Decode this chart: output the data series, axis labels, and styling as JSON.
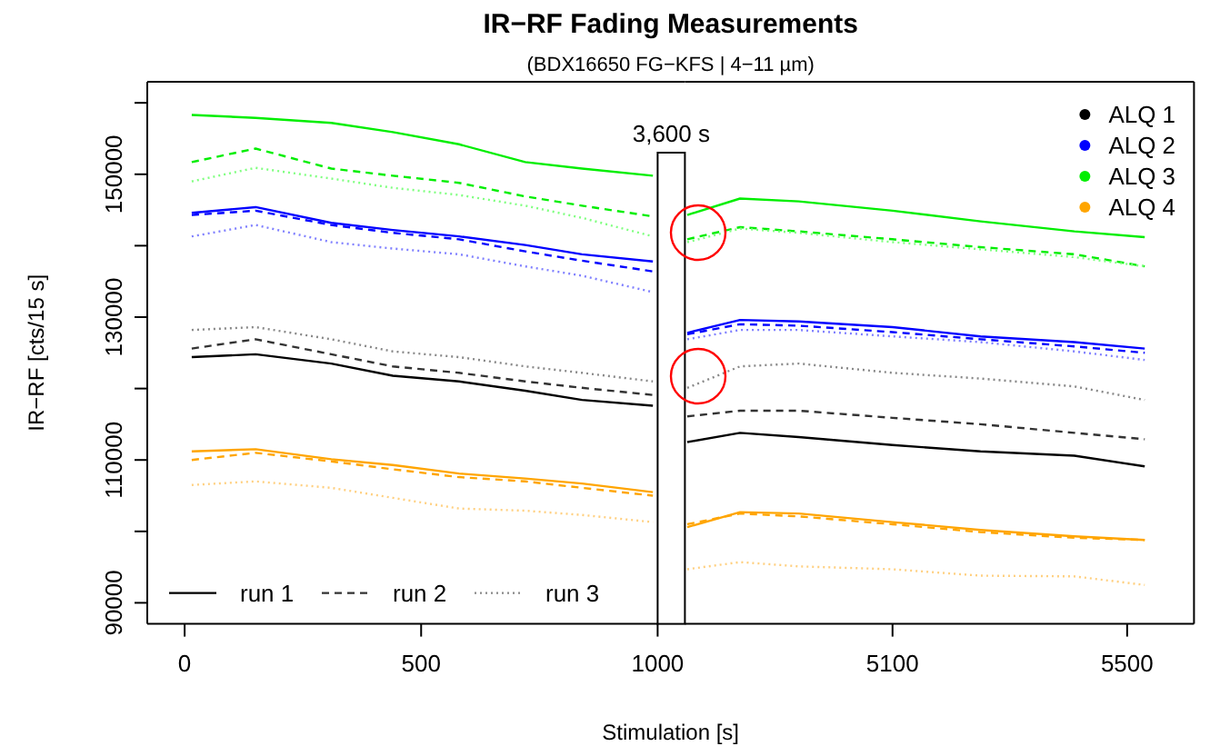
{
  "chart_data": [
    {
      "type": "line",
      "title": "IR−RF Fading Measurements",
      "subtitle": "(BDX16650 FG−KFS | 4−11 µm)",
      "xlabel": "Stimulation [s]",
      "ylabel": "IR−RF [cts/15 s]",
      "annotations": [
        "3,600 s"
      ],
      "x": [
        15,
        150,
        310,
        440,
        580,
        720,
        840,
        990
      ],
      "xlim": [
        -79,
        1000
      ],
      "xticks": [
        0,
        500,
        1000
      ],
      "ylim": [
        87050,
        162950
      ],
      "yticks": [
        {
          "value": 90000,
          "label": "90000"
        },
        {
          "value": 100000,
          "label": null
        },
        {
          "value": 110000,
          "label": "110000"
        },
        {
          "value": 120000,
          "label": null
        },
        {
          "value": 130000,
          "label": "130000"
        },
        {
          "value": 140000,
          "label": null
        },
        {
          "value": 150000,
          "label": "150000"
        },
        {
          "value": 160000,
          "label": null
        }
      ],
      "legend": "bottom left",
      "grid": false,
      "series": [
        {
          "name": "run 1",
          "color": "#000000",
          "line_style": "solid",
          "values": [
            124400,
            124800,
            123500,
            121800,
            121000,
            119700,
            118400,
            117600
          ]
        },
        {
          "name": "run 2",
          "color": "#333333",
          "line_style": "dashed",
          "values": [
            125600,
            126900,
            124800,
            123100,
            122200,
            121000,
            120100,
            119100
          ]
        },
        {
          "name": "run 3",
          "color": "#888888",
          "line_style": "dotted",
          "values": [
            128200,
            128600,
            126900,
            125200,
            124400,
            123100,
            122200,
            121000
          ]
        },
        {
          "color": "#0000ff",
          "line_style": "solid",
          "values": [
            144600,
            145400,
            143200,
            142200,
            141300,
            140100,
            138800,
            137800
          ]
        },
        {
          "color": "#0000ff",
          "line_style": "dashed",
          "values": [
            144300,
            144900,
            142900,
            141800,
            140900,
            139200,
            137900,
            136400
          ]
        },
        {
          "color": "#8080ff",
          "line_style": "dotted",
          "values": [
            141300,
            142900,
            140500,
            139600,
            138800,
            137100,
            135800,
            133500
          ]
        },
        {
          "color": "#00ee00",
          "line_style": "solid",
          "values": [
            158300,
            157900,
            157200,
            155900,
            154200,
            151700,
            150800,
            149800
          ]
        },
        {
          "color": "#00ee00",
          "line_style": "dashed",
          "values": [
            151700,
            153600,
            150800,
            149800,
            148800,
            146900,
            145600,
            144100
          ]
        },
        {
          "color": "#80ff80",
          "line_style": "dotted",
          "values": [
            149000,
            150900,
            149400,
            148100,
            147100,
            145600,
            143900,
            141300
          ]
        },
        {
          "color": "#ffa500",
          "line_style": "solid",
          "values": [
            111200,
            111500,
            110100,
            109300,
            108100,
            107400,
            106700,
            105500
          ]
        },
        {
          "color": "#ffa500",
          "line_style": "dashed",
          "values": [
            110000,
            111000,
            109800,
            108700,
            107600,
            107000,
            106100,
            105000
          ]
        },
        {
          "color": "#ffd080",
          "line_style": "dotted",
          "values": [
            106500,
            107000,
            106100,
            104700,
            103200,
            102900,
            102300,
            101300
          ]
        }
      ]
    },
    {
      "type": "line",
      "x": [
        4750,
        4840,
        4940,
        5100,
        5250,
        5410,
        5530
      ],
      "xlim": [
        4746,
        5614
      ],
      "xticks": [
        5100,
        5500
      ],
      "ylim": [
        87050,
        162950
      ],
      "tick_labels": "x",
      "legend": "top right",
      "grid": false,
      "series": [
        {
          "name": "ALQ 1",
          "color": "#000000",
          "line_style": "solid",
          "values": [
            112500,
            113800,
            113200,
            112100,
            111200,
            110600,
            109100
          ]
        },
        {
          "color": "#333333",
          "line_style": "dashed",
          "values": [
            116100,
            116900,
            116900,
            115900,
            115000,
            113800,
            112900
          ]
        },
        {
          "color": "#888888",
          "line_style": "dotted",
          "values": [
            120100,
            123100,
            123500,
            122200,
            121400,
            120300,
            118400
          ]
        },
        {
          "name": "ALQ 2",
          "color": "#0000ff",
          "line_style": "solid",
          "values": [
            127800,
            129600,
            129400,
            128600,
            127300,
            126500,
            125600
          ]
        },
        {
          "color": "#0000ff",
          "line_style": "dashed",
          "values": [
            127600,
            129000,
            128800,
            127900,
            126900,
            125900,
            125000
          ]
        },
        {
          "color": "#8080ff",
          "line_style": "dotted",
          "values": [
            126900,
            128200,
            128200,
            127300,
            126500,
            125200,
            124000
          ]
        },
        {
          "name": "ALQ 3",
          "color": "#00ee00",
          "line_style": "solid",
          "values": [
            144300,
            146600,
            146200,
            144900,
            143400,
            142000,
            141200
          ]
        },
        {
          "color": "#00ee00",
          "line_style": "dashed",
          "values": [
            140900,
            142600,
            142000,
            140900,
            139800,
            138800,
            137100
          ]
        },
        {
          "color": "#80ff80",
          "line_style": "dotted",
          "values": [
            140500,
            142400,
            141800,
            140500,
            139500,
            138400,
            137100
          ]
        },
        {
          "name": "ALQ 4",
          "color": "#ffa500",
          "line_style": "solid",
          "values": [
            100600,
            102700,
            102500,
            101300,
            100200,
            99300,
            98800
          ]
        },
        {
          "color": "#ffa500",
          "line_style": "dashed",
          "values": [
            101000,
            102500,
            102100,
            101000,
            99900,
            99100,
            98800
          ]
        },
        {
          "color": "#ffd080",
          "line_style": "dotted",
          "values": [
            94700,
            95700,
            95100,
            94700,
            93800,
            93700,
            92500
          ]
        }
      ]
    }
  ]
}
